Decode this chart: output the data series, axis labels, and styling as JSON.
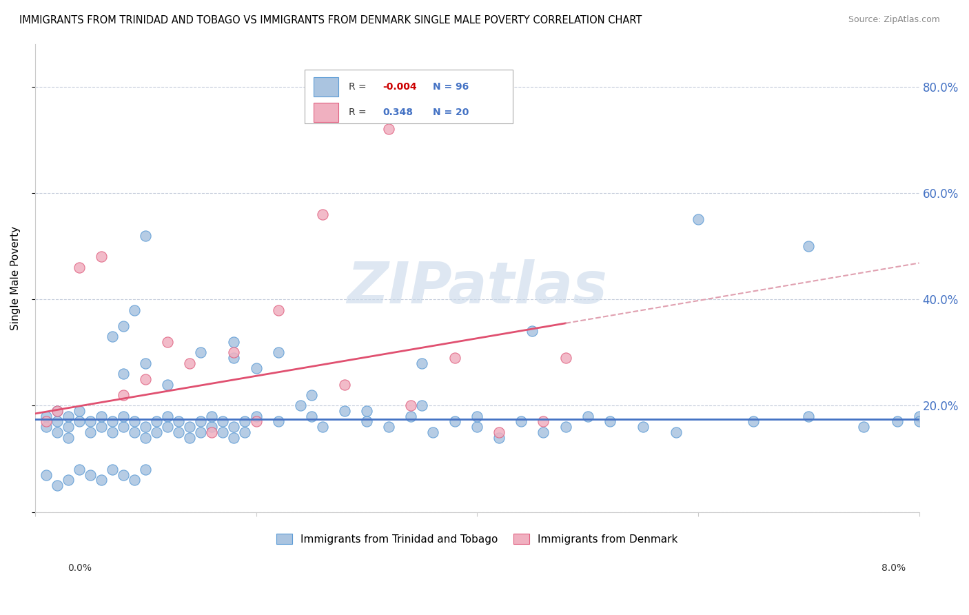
{
  "title": "IMMIGRANTS FROM TRINIDAD AND TOBAGO VS IMMIGRANTS FROM DENMARK SINGLE MALE POVERTY CORRELATION CHART",
  "source": "Source: ZipAtlas.com",
  "ylabel": "Single Male Poverty",
  "y_ticks_right": [
    0.2,
    0.4,
    0.6,
    0.8
  ],
  "y_tick_labels_right": [
    "20.0%",
    "40.0%",
    "60.0%",
    "80.0%"
  ],
  "x_range": [
    0.0,
    0.08
  ],
  "y_range": [
    0.0,
    0.88
  ],
  "r_tt": -0.004,
  "n_tt": 96,
  "r_dk": 0.348,
  "n_dk": 20,
  "tt_color": "#aac4e0",
  "dk_color": "#f0b0c0",
  "tt_edge_color": "#5b9bd5",
  "dk_edge_color": "#e06080",
  "tt_line_color": "#4472c4",
  "dk_line_solid_color": "#e05070",
  "dk_line_dash_color": "#e0a0b0",
  "watermark": "ZIPatlas",
  "watermark_color": "#c8d8ea",
  "legend_label_tt": "Immigrants from Trinidad and Tobago",
  "legend_label_dk": "Immigrants from Denmark",
  "grid_color": "#c0c8d8",
  "tt_line_y_at_0": 0.175,
  "tt_line_y_at_008": 0.175,
  "dk_line_solid_y_at_0": 0.185,
  "dk_line_solid_y_at_0045": 0.355,
  "dk_line_dash_y_at_0045": 0.355,
  "dk_line_dash_y_at_008": 0.545
}
